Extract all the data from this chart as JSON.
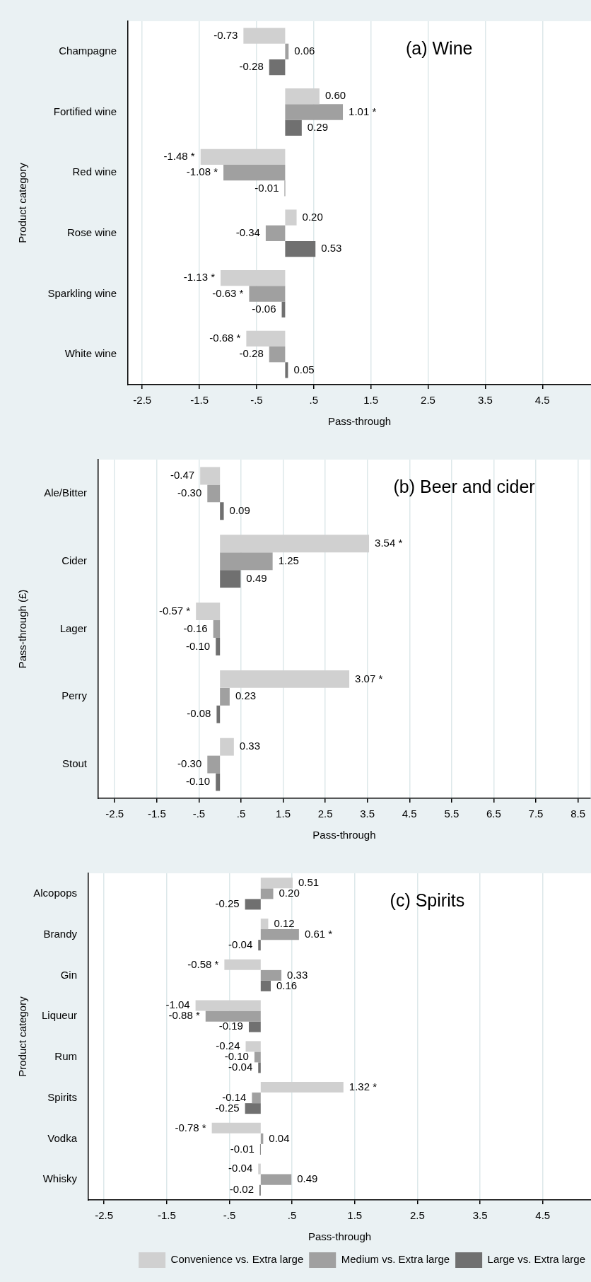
{
  "chart_data": [
    {
      "type": "bar",
      "orientation": "horizontal",
      "ylabel": "Product category",
      "xlabel": "Pass-through",
      "annotations": [
        "(a) Wine"
      ],
      "categories": [
        "Champagne",
        "Fortified wine",
        "Red wine",
        "Rose wine",
        "Sparkling wine",
        "White wine"
      ],
      "xlim": [
        -2.75,
        5.35
      ],
      "xticks": [
        {
          "value": -2.5,
          "label": "-2.5"
        },
        {
          "value": -1.5,
          "label": "-1.5"
        },
        {
          "value": -0.5,
          "label": "-.5"
        },
        {
          "value": 0.5,
          "label": ".5"
        },
        {
          "value": 1.5,
          "label": "1.5"
        },
        {
          "value": 2.5,
          "label": "2.5"
        },
        {
          "value": 3.5,
          "label": "3.5"
        },
        {
          "value": 4.5,
          "label": "4.5"
        }
      ],
      "grid": "x",
      "legend": false,
      "series": [
        {
          "color": "#d0d0d0",
          "values": [
            -0.73,
            0.6,
            -1.48,
            0.2,
            -1.13,
            -0.68
          ],
          "value_labels": [
            "-0.73",
            "0.60",
            "-1.48 *",
            "0.20",
            "-1.13 *",
            "-0.68 *"
          ]
        },
        {
          "color": "#a0a0a0",
          "values": [
            0.06,
            1.01,
            -1.08,
            -0.34,
            -0.63,
            -0.28
          ],
          "value_labels": [
            "0.06",
            "1.01 *",
            "-1.08 *",
            "-0.34",
            "-0.63 *",
            "-0.28"
          ]
        },
        {
          "color": "#707070",
          "values": [
            -0.28,
            0.29,
            -0.01,
            0.53,
            -0.06,
            0.05
          ],
          "value_labels": [
            "-0.28",
            "0.29",
            "-0.01",
            "0.53",
            "-0.06",
            "0.05"
          ]
        }
      ]
    },
    {
      "type": "bar",
      "orientation": "horizontal",
      "ylabel": "Pass-through (£)",
      "xlabel": "Pass-through",
      "annotations": [
        "(b) Beer and cider"
      ],
      "categories": [
        "Ale/Bitter",
        "Cider",
        "Lager",
        "Perry",
        "Stout"
      ],
      "xlim": [
        -2.89,
        8.79
      ],
      "xticks": [
        {
          "value": -2.5,
          "label": "-2.5"
        },
        {
          "value": -1.5,
          "label": "-1.5"
        },
        {
          "value": -0.5,
          "label": "-.5"
        },
        {
          "value": 0.5,
          "label": ".5"
        },
        {
          "value": 1.5,
          "label": "1.5"
        },
        {
          "value": 2.5,
          "label": "2.5"
        },
        {
          "value": 3.5,
          "label": "3.5"
        },
        {
          "value": 4.5,
          "label": "4.5"
        },
        {
          "value": 5.5,
          "label": "5.5"
        },
        {
          "value": 6.5,
          "label": "6.5"
        },
        {
          "value": 7.5,
          "label": "7.5"
        },
        {
          "value": 8.5,
          "label": "8.5"
        }
      ],
      "grid": "x",
      "legend": false,
      "series": [
        {
          "color": "#d0d0d0",
          "values": [
            -0.47,
            3.54,
            -0.57,
            3.07,
            0.33
          ],
          "value_labels": [
            "-0.47",
            "3.54 *",
            "-0.57 *",
            "3.07 *",
            "0.33"
          ]
        },
        {
          "color": "#a0a0a0",
          "values": [
            -0.3,
            1.25,
            -0.16,
            0.23,
            -0.3
          ],
          "value_labels": [
            "-0.30",
            "1.25",
            "-0.16",
            "0.23",
            "-0.30"
          ]
        },
        {
          "color": "#707070",
          "values": [
            0.09,
            0.49,
            -0.1,
            -0.08,
            -0.1
          ],
          "value_labels": [
            "0.09",
            "0.49",
            "-0.10",
            "-0.08",
            "-0.10"
          ]
        }
      ]
    },
    {
      "type": "bar",
      "orientation": "horizontal",
      "ylabel": "Product category",
      "xlabel": "Pass-through",
      "annotations": [
        "(c) Spirits"
      ],
      "categories": [
        "Alcopops",
        "Brandy",
        "Gin",
        "Liqueur",
        "Rum",
        "Spirits",
        "Vodka",
        "Whisky"
      ],
      "xlim": [
        -2.75,
        5.27
      ],
      "xticks": [
        {
          "value": -2.5,
          "label": "-2.5"
        },
        {
          "value": -1.5,
          "label": "-1.5"
        },
        {
          "value": -0.5,
          "label": "-.5"
        },
        {
          "value": 0.5,
          "label": ".5"
        },
        {
          "value": 1.5,
          "label": "1.5"
        },
        {
          "value": 2.5,
          "label": "2.5"
        },
        {
          "value": 3.5,
          "label": "3.5"
        },
        {
          "value": 4.5,
          "label": "4.5"
        }
      ],
      "grid": "x",
      "legend": "bottom",
      "series": [
        {
          "name": "Convenience vs. Extra large",
          "color": "#d0d0d0",
          "values": [
            0.51,
            0.12,
            -0.58,
            -1.04,
            -0.24,
            1.32,
            -0.78,
            -0.04
          ],
          "value_labels": [
            "0.51",
            "0.12",
            "-0.58 *",
            "-1.04",
            "-0.24",
            "1.32 *",
            "-0.78 *",
            "-0.04"
          ]
        },
        {
          "name": "Medium vs. Extra large",
          "color": "#a0a0a0",
          "values": [
            0.2,
            0.61,
            0.33,
            -0.88,
            -0.1,
            -0.14,
            0.04,
            0.49
          ],
          "value_labels": [
            "0.20",
            "0.61 *",
            "0.33",
            "-0.88 *",
            "-0.10",
            "-0.14",
            "0.04",
            "0.49"
          ]
        },
        {
          "name": "Large vs. Extra large",
          "color": "#707070",
          "values": [
            -0.25,
            -0.04,
            0.16,
            -0.19,
            -0.04,
            -0.25,
            -0.01,
            -0.02
          ],
          "value_labels": [
            "-0.25",
            "-0.04",
            "0.16",
            "-0.19",
            "-0.04",
            "-0.25",
            "-0.01",
            "-0.02"
          ]
        }
      ]
    }
  ]
}
